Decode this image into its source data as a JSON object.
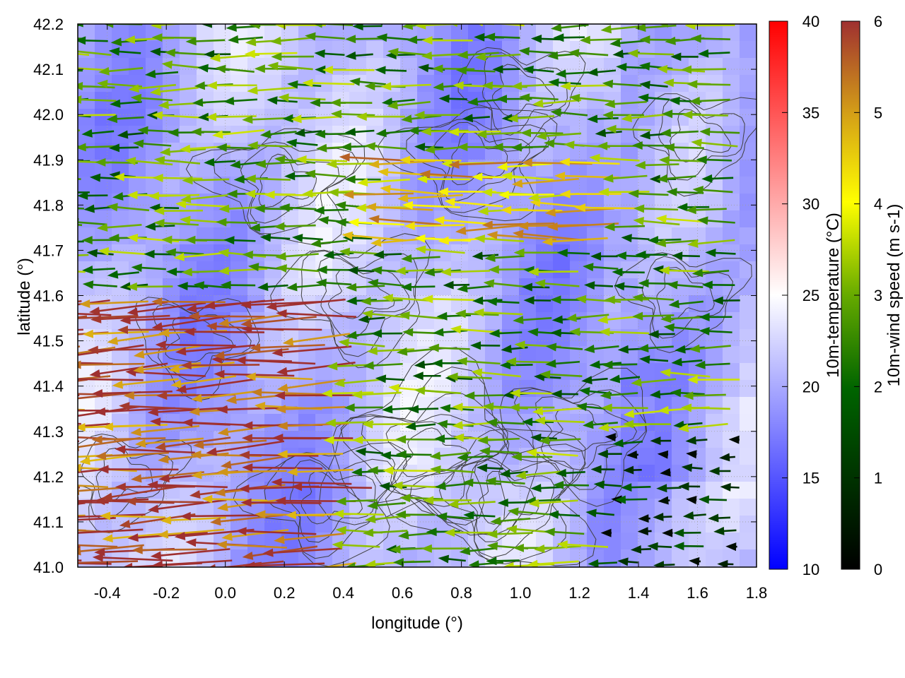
{
  "chart_data": {
    "type": "vector_field_heatmap",
    "xlabel": "longitude (°)",
    "ylabel": "latitude (°)",
    "xlim": [
      -0.5,
      1.8
    ],
    "ylim": [
      41.0,
      42.2
    ],
    "xticks": [
      "-0.4",
      "-0.2",
      "0.0",
      "0.2",
      "0.4",
      "0.6",
      "0.8",
      "1.0",
      "1.2",
      "1.4",
      "1.6",
      "1.8"
    ],
    "yticks": [
      "41.0",
      "41.1",
      "41.2",
      "41.3",
      "41.4",
      "41.5",
      "41.6",
      "41.7",
      "41.8",
      "41.9",
      "42.0",
      "42.1",
      "42.2"
    ],
    "grid": true,
    "background_field": {
      "name": "10m-temperature",
      "colorbar_label": "10m-temperature (°C)",
      "range": [
        10,
        40
      ],
      "ticks": [
        "10",
        "15",
        "20",
        "25",
        "30",
        "35",
        "40"
      ],
      "colors": [
        "#0000ff",
        "#ffffff",
        "#ff0000"
      ],
      "typical_range_in_view": [
        17,
        24
      ]
    },
    "vector_field": {
      "name": "10m-wind speed",
      "colorbar_label": "10m-wind speed (m s-1)",
      "range": [
        0,
        6
      ],
      "ticks": [
        "0",
        "1",
        "2",
        "3",
        "4",
        "5",
        "6"
      ],
      "colors": [
        "#000000",
        "#006400",
        "#66aa00",
        "#ffff00",
        "#d4a017",
        "#9f3030"
      ],
      "dominant_direction": "westward (easterly wind)",
      "regions": [
        {
          "lon_range": [
            -0.5,
            0.5
          ],
          "lat_range": [
            41.0,
            41.6
          ],
          "speed": 5.8,
          "direction": "west, slightly southwest"
        },
        {
          "lon_range": [
            0.6,
            1.4
          ],
          "lat_range": [
            41.7,
            41.9
          ],
          "speed": 4.5,
          "direction": "west"
        },
        {
          "lon_range": [
            1.3,
            1.8
          ],
          "lat_range": [
            41.0,
            41.3
          ],
          "speed": 1.0,
          "direction": "west"
        }
      ]
    },
    "contours": {
      "color": "#404040",
      "description": "topography isolines"
    }
  }
}
